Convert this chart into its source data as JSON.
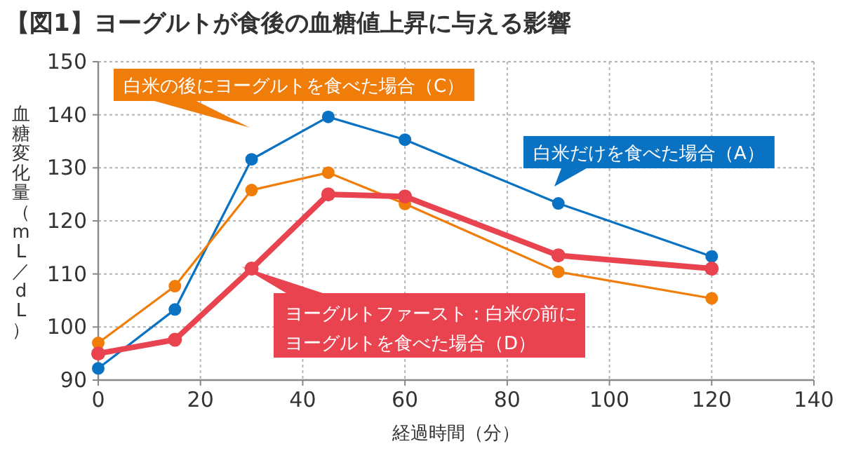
{
  "chart_data": {
    "type": "line",
    "title": "【図1】ヨーグルトが食後の血糖値上昇に与える影響",
    "xlabel": "経過時間（分）",
    "ylabel": "血糖変化量（mL／dL）",
    "x": [
      0,
      15,
      30,
      45,
      60,
      90,
      120
    ],
    "series": [
      {
        "name": "白米だけを食べた場合（A）",
        "color": "#0a72c2",
        "values": [
          92.2,
          103.3,
          131.6,
          139.6,
          135.3,
          123.3,
          113.3
        ]
      },
      {
        "name": "白米の後にヨーグルトを食べた場合（C）",
        "color": "#f07d0a",
        "values": [
          97.0,
          107.7,
          125.8,
          129.1,
          123.2,
          110.4,
          105.4
        ]
      },
      {
        "name": "ヨーグルトファースト：白米の前にヨーグルトを食べた場合（D）",
        "color": "#e8434f",
        "values": [
          95.0,
          97.6,
          111.0,
          125.0,
          124.6,
          113.5,
          111.0
        ]
      }
    ],
    "xlim": [
      0,
      140
    ],
    "xticks": [
      0,
      20,
      40,
      60,
      80,
      100,
      120,
      140
    ],
    "ylim": [
      90,
      150
    ],
    "yticks": [
      90,
      100,
      110,
      120,
      130,
      140,
      150
    ],
    "grid": true,
    "marker": "circle",
    "line_style": "solid"
  }
}
